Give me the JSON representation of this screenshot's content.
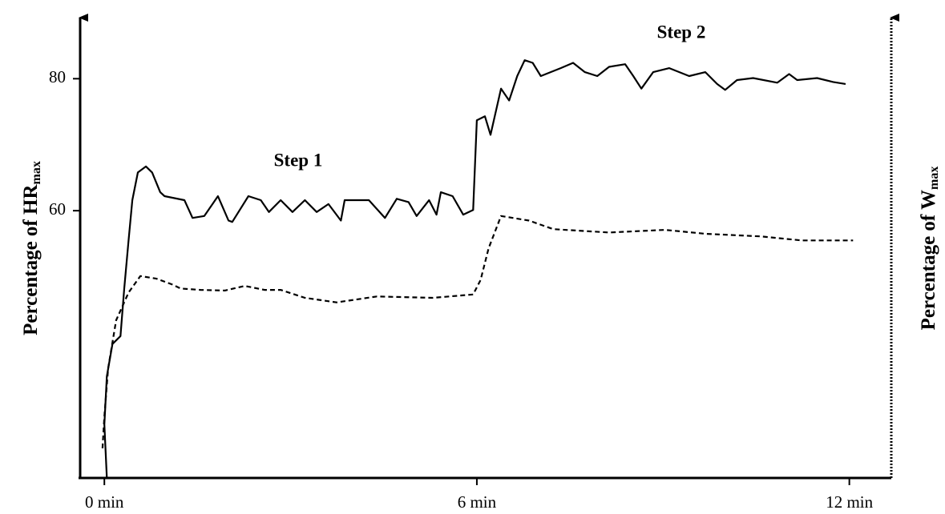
{
  "chart_data": {
    "type": "line",
    "ylabel": {
      "main": "Percentage of HR",
      "subscript": "max"
    },
    "y2label": {
      "main": "Percentage of W",
      "subscript": "max"
    },
    "annotations": [
      "Step 1",
      "Step 2"
    ],
    "xlim": [
      -0.39,
      12.65
    ],
    "xticks": [
      {
        "value": 0,
        "label": "0 min"
      },
      {
        "value": 6,
        "label": "6 min"
      },
      {
        "value": 12,
        "label": "12 min"
      }
    ],
    "ylim": [
      19.5,
      89.5
    ],
    "yticks": [
      60,
      80
    ],
    "series": [
      {
        "color": "#000000",
        "dash": "solid",
        "x": [
          0.04,
          0.0,
          0.04,
          0.13,
          0.26,
          0.32,
          0.39,
          0.45,
          0.54,
          0.67,
          0.77,
          0.9,
          0.97,
          1.29,
          1.42,
          1.61,
          1.83,
          2.0,
          2.06,
          2.32,
          2.52,
          2.65,
          2.84,
          3.03,
          3.23,
          3.42,
          3.61,
          3.81,
          3.87,
          4.26,
          4.52,
          4.71,
          4.9,
          5.03,
          5.23,
          5.35,
          5.42,
          5.61,
          5.78,
          5.94,
          6.0,
          6.13,
          6.22,
          6.39,
          6.52,
          6.65,
          6.77,
          6.9,
          7.03,
          7.35,
          7.55,
          7.74,
          7.94,
          8.13,
          8.39,
          8.52,
          8.65,
          8.84,
          9.1,
          9.42,
          9.68,
          9.87,
          10.0,
          10.19,
          10.45,
          10.84,
          11.03,
          11.16,
          11.48,
          11.74,
          11.94
        ],
        "values": [
          19.5,
          27.6,
          34.9,
          39.8,
          41.0,
          48.2,
          55.5,
          61.6,
          65.8,
          66.7,
          65.8,
          62.8,
          62.2,
          61.6,
          58.9,
          59.2,
          62.2,
          58.5,
          58.3,
          62.2,
          61.6,
          59.8,
          61.6,
          59.8,
          61.6,
          59.8,
          61.0,
          58.5,
          61.6,
          61.6,
          58.9,
          61.8,
          61.3,
          59.2,
          61.6,
          59.4,
          62.8,
          62.2,
          59.4,
          60.1,
          73.7,
          74.3,
          71.5,
          78.5,
          76.7,
          80.4,
          82.8,
          82.4,
          80.4,
          81.6,
          82.4,
          81.0,
          80.4,
          81.8,
          82.2,
          80.4,
          78.5,
          81.0,
          81.6,
          80.4,
          81.0,
          79.2,
          78.3,
          79.8,
          80.1,
          79.4,
          80.7,
          79.8,
          80.1,
          79.5,
          79.2
        ]
      },
      {
        "color": "#000000",
        "dash": "dashed",
        "x": [
          -0.03,
          0.0,
          0.06,
          0.19,
          0.39,
          0.58,
          0.84,
          1.1,
          1.23,
          1.55,
          1.94,
          2.26,
          2.58,
          2.84,
          3.23,
          3.74,
          4.39,
          5.29,
          5.94,
          6.06,
          6.19,
          6.39,
          6.58,
          6.84,
          7.23,
          8.13,
          9.03,
          9.68,
          10.58,
          11.23,
          12.06
        ],
        "values": [
          24.0,
          28.8,
          36.1,
          43.4,
          47.6,
          50.1,
          49.7,
          48.8,
          48.2,
          48.0,
          47.9,
          48.6,
          48.0,
          48.0,
          46.8,
          46.1,
          47.0,
          46.8,
          47.3,
          49.5,
          54.3,
          59.2,
          58.9,
          58.5,
          57.2,
          56.7,
          57.1,
          56.5,
          56.1,
          55.5,
          55.5
        ]
      }
    ]
  }
}
